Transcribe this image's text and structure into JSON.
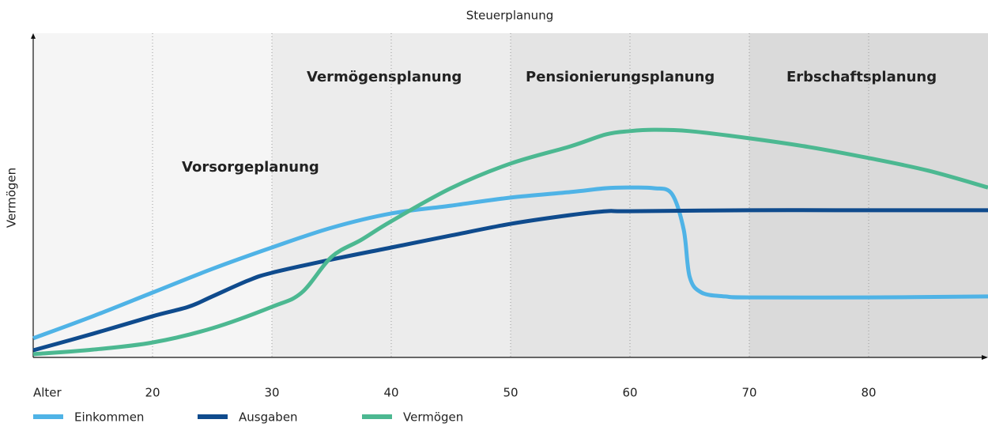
{
  "chart_data": {
    "type": "line",
    "title": "Steuerplanung",
    "ylabel": "Vermögen",
    "xlim": [
      10,
      90
    ],
    "ylim": [
      0,
      100
    ],
    "xticks": [
      {
        "value": 10,
        "label": "Alter"
      },
      20,
      30,
      40,
      50,
      60,
      70,
      80
    ],
    "grid": true,
    "legend": "bottom",
    "phases": [
      {
        "label": "Vorsorgeplanung",
        "start": 10,
        "end": 30,
        "color": "#f5f5f5"
      },
      {
        "label": "Vermögensplanung",
        "start": 30,
        "end": 50,
        "color": "#ececec"
      },
      {
        "label": "Pensionierungsplanung",
        "start": 50,
        "end": 70,
        "color": "#e4e4e4"
      },
      {
        "label": "Erbschaftsplanung",
        "start": 70,
        "end": 90,
        "color": "#dadada"
      }
    ],
    "series": [
      {
        "name": "Einkommen",
        "color": "#4fb3e6",
        "x": [
          10,
          15,
          20,
          25,
          30,
          35,
          40,
          45,
          50,
          55,
          58,
          60,
          62,
          63.5,
          64.5,
          65,
          66,
          68,
          70,
          80,
          90
        ],
        "values": [
          5.9,
          12.7,
          20,
          27.3,
          33.9,
          40,
          44.4,
          46.8,
          49.3,
          51,
          52.2,
          52.4,
          52.2,
          50.5,
          39.5,
          24.9,
          20,
          18.8,
          18.5,
          18.5,
          18.8
        ]
      },
      {
        "name": "Ausgaben",
        "color": "#0f4b8d",
        "x": [
          10,
          15,
          20,
          23,
          25,
          28,
          30,
          35,
          40,
          45,
          50,
          55,
          58,
          60,
          70,
          80,
          90
        ],
        "values": [
          2.2,
          7.3,
          12.7,
          15.6,
          18.8,
          23.7,
          26.1,
          30.2,
          33.9,
          37.6,
          41.2,
          43.9,
          45.1,
          45.1,
          45.4,
          45.4,
          45.4
        ]
      },
      {
        "name": "Vermögen",
        "color": "#4cb891",
        "x": [
          10,
          15,
          20,
          25,
          30,
          32.5,
          35,
          37.5,
          40,
          45,
          50,
          55,
          58,
          60,
          62,
          65,
          70,
          75,
          80,
          85,
          90
        ],
        "values": [
          1,
          2.4,
          4.6,
          9,
          15.6,
          20,
          31,
          36.3,
          42,
          52.2,
          59.8,
          65.1,
          68.8,
          69.8,
          70.2,
          69.8,
          67.6,
          64.9,
          61.5,
          57.6,
          52.4
        ]
      }
    ]
  }
}
